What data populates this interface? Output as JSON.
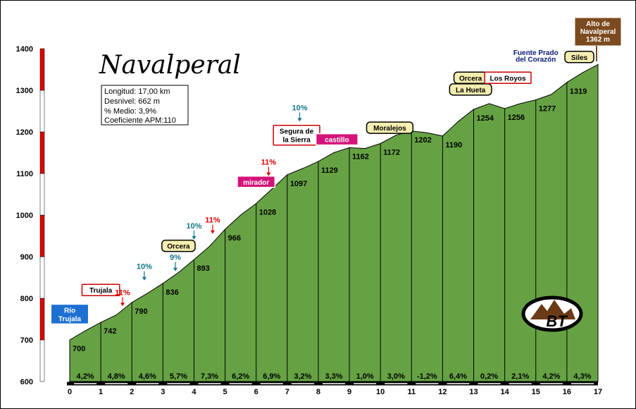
{
  "chart_data": {
    "type": "area",
    "title": "Navalperal",
    "stats": [
      "Longitud: 17,00 km",
      "Desnivel: 662 m",
      "% Medio: 3,9%",
      "Coeficiente APM:110"
    ],
    "xlim": [
      0,
      17
    ],
    "ylim": [
      600,
      1400
    ],
    "x_ticks": [
      "0",
      "1",
      "2",
      "3",
      "4",
      "5",
      "6",
      "7",
      "8",
      "9",
      "10",
      "11",
      "12",
      "13",
      "14",
      "15",
      "16",
      "17"
    ],
    "y_ticks": [
      "600",
      "700",
      "800",
      "900",
      "1000",
      "1100",
      "1200",
      "1300",
      "1400"
    ],
    "profile": [
      [
        0,
        700
      ],
      [
        0.5,
        722
      ],
      [
        1,
        742
      ],
      [
        1.5,
        760
      ],
      [
        2,
        790
      ],
      [
        2.5,
        812
      ],
      [
        3,
        836
      ],
      [
        3.5,
        862
      ],
      [
        4,
        893
      ],
      [
        4.5,
        925
      ],
      [
        5,
        966
      ],
      [
        5.5,
        1000
      ],
      [
        6,
        1028
      ],
      [
        6.5,
        1062
      ],
      [
        7,
        1097
      ],
      [
        7.5,
        1112
      ],
      [
        8,
        1129
      ],
      [
        8.5,
        1150
      ],
      [
        9,
        1162
      ],
      [
        9.5,
        1160
      ],
      [
        10,
        1172
      ],
      [
        10.5,
        1192
      ],
      [
        11,
        1202
      ],
      [
        11.5,
        1198
      ],
      [
        12,
        1190
      ],
      [
        12.5,
        1225
      ],
      [
        13,
        1254
      ],
      [
        13.5,
        1268
      ],
      [
        14,
        1256
      ],
      [
        14.5,
        1268
      ],
      [
        15,
        1277
      ],
      [
        15.5,
        1290
      ],
      [
        16,
        1319
      ],
      [
        16.5,
        1342
      ],
      [
        17,
        1362
      ]
    ],
    "km_points": [
      {
        "km": 0,
        "alt": "700"
      },
      {
        "km": 1,
        "alt": "742"
      },
      {
        "km": 2,
        "alt": "790"
      },
      {
        "km": 3,
        "alt": "836"
      },
      {
        "km": 4,
        "alt": "893"
      },
      {
        "km": 5,
        "alt": "966"
      },
      {
        "km": 6,
        "alt": "1028"
      },
      {
        "km": 7,
        "alt": "1097"
      },
      {
        "km": 8,
        "alt": "1129"
      },
      {
        "km": 9,
        "alt": "1162"
      },
      {
        "km": 10,
        "alt": "1172"
      },
      {
        "km": 11,
        "alt": "1202"
      },
      {
        "km": 12,
        "alt": "1190"
      },
      {
        "km": 13,
        "alt": "1254"
      },
      {
        "km": 14,
        "alt": "1256"
      },
      {
        "km": 15,
        "alt": "1277"
      },
      {
        "km": 16,
        "alt": "1319"
      }
    ],
    "segment_grades": [
      "4,2%",
      "4,8%",
      "4,6%",
      "5,7%",
      "7,3%",
      "6,2%",
      "6,9%",
      "3,2%",
      "3,3%",
      "1,0%",
      "3,0%",
      "-1,2%",
      "6,4%",
      "0,2%",
      "2,1%",
      "4,2%",
      "4,3%"
    ],
    "summit_label": [
      "Alto de",
      "Navalperal",
      "1362 m"
    ],
    "place_labels": [
      {
        "lines": [
          "Río",
          "Trujala"
        ],
        "km": 0.0,
        "alt": 762,
        "style": "blue"
      },
      {
        "lines": [
          "Trujala"
        ],
        "km": 1.0,
        "alt": 820,
        "style": "white-red"
      },
      {
        "lines": [
          "Orcera"
        ],
        "km": 3.5,
        "alt": 926,
        "style": "yellow"
      },
      {
        "lines": [
          "mirador"
        ],
        "km": 6.0,
        "alt": 1080,
        "style": "magenta"
      },
      {
        "lines": [
          "Segura de",
          "la Sierra"
        ],
        "km": 7.3,
        "alt": 1192,
        "style": "white-red"
      },
      {
        "lines": [
          "castillo"
        ],
        "km": 8.6,
        "alt": 1182,
        "style": "magenta"
      },
      {
        "lines": [
          "Moralejos"
        ],
        "km": 10.3,
        "alt": 1210,
        "style": "yellow"
      },
      {
        "lines": [
          "Orcera"
        ],
        "km": 12.9,
        "alt": 1330,
        "style": "yellow"
      },
      {
        "lines": [
          "La Hueta"
        ],
        "km": 12.9,
        "alt": 1302,
        "style": "yellow"
      },
      {
        "lines": [
          "Los Royos"
        ],
        "km": 14.1,
        "alt": 1330,
        "style": "white-red"
      },
      {
        "lines": [
          "Siles"
        ],
        "km": 16.4,
        "alt": 1380,
        "style": "yellow"
      }
    ],
    "free_labels": [
      {
        "text": "Fuente Prado",
        "km": 15.0,
        "alt": 1385,
        "color": "#0a1a7a"
      },
      {
        "text": "del Corazón",
        "km": 15.0,
        "alt": 1369,
        "color": "#0a1a7a"
      }
    ],
    "slope_marks": [
      {
        "text": "11%",
        "km": 1.7,
        "alt": 808,
        "color": "#dd0000"
      },
      {
        "text": "10%",
        "km": 2.4,
        "alt": 870,
        "color": "#117788"
      },
      {
        "text": "9%",
        "km": 3.4,
        "alt": 892,
        "color": "#117788"
      },
      {
        "text": "10%",
        "km": 4.0,
        "alt": 968,
        "color": "#117788"
      },
      {
        "text": "11%",
        "km": 4.6,
        "alt": 982,
        "color": "#dd0000"
      },
      {
        "text": "11%",
        "km": 6.4,
        "alt": 1121,
        "color": "#dd0000"
      },
      {
        "text": "10%",
        "km": 7.4,
        "alt": 1252,
        "color": "#117788"
      }
    ],
    "logo_text": "BT"
  }
}
